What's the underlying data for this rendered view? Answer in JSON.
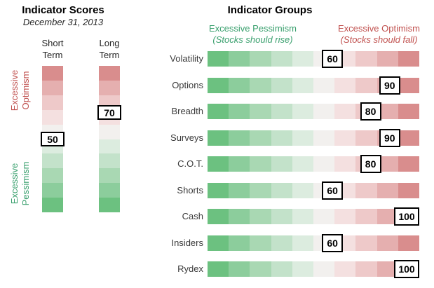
{
  "chart_data": [
    {
      "type": "bar",
      "orientation": "vertical",
      "title": "Indicator Scores",
      "subtitle": "December 31, 2013",
      "axis_top_label": "Excessive Optimism",
      "axis_bottom_label": "Excessive Pessimism",
      "categories": [
        "Short Term",
        "Long Term"
      ],
      "values": [
        50,
        70
      ],
      "ylim": [
        0,
        100
      ],
      "grid": false,
      "legend_position": "none"
    },
    {
      "type": "bar",
      "orientation": "horizontal",
      "title": "Indicator Groups",
      "left_header": "Excessive Pessimism",
      "left_subheader": "(Stocks should rise)",
      "right_header": "Excessive Optimism",
      "right_subheader": "(Stocks should fall)",
      "categories": [
        "Volatility",
        "Options",
        "Breadth",
        "Surveys",
        "C.O.T.",
        "Shorts",
        "Cash",
        "Insiders",
        "Rydex"
      ],
      "values": [
        60,
        90,
        80,
        90,
        80,
        60,
        100,
        60,
        100
      ],
      "xlim": [
        0,
        100
      ],
      "grid": false,
      "legend_position": "none"
    }
  ],
  "colors": {
    "gradient_green_to_red": [
      "#6cc180",
      "#8ccd9c",
      "#a9d8b3",
      "#c3e2ca",
      "#dcecdf",
      "#f2f0ee",
      "#f4e0e0",
      "#eec9c9",
      "#e5afaf",
      "#d98d8d"
    ],
    "green_text": "#3aa06e",
    "red_text": "#c0504e",
    "value_box_bg": "#ffffff",
    "value_box_border": "#000000"
  }
}
